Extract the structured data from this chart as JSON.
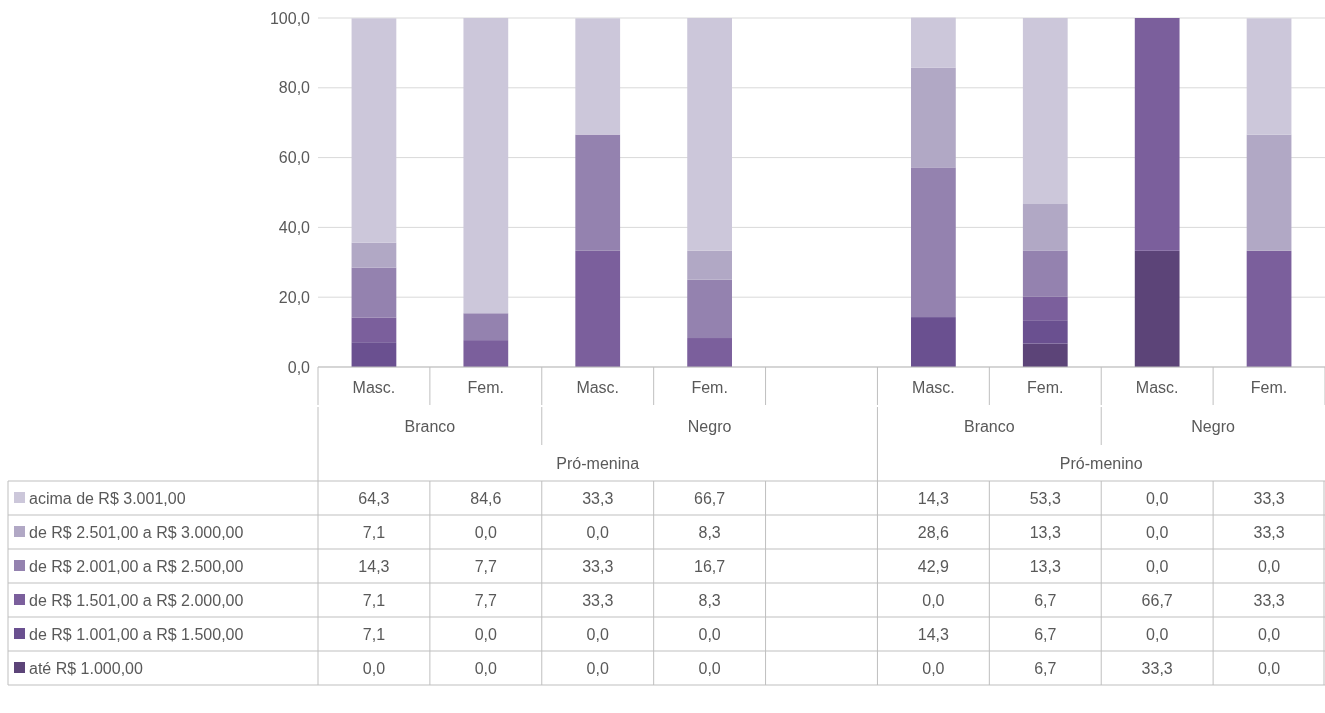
{
  "chart_data": {
    "type": "bar",
    "stacked": true,
    "categories": [
      "Masc.",
      "Fem.",
      "Masc.",
      "Fem.",
      null,
      "Masc.",
      "Fem.",
      "Masc.",
      "Fem."
    ],
    "annotations": [
      "Branco",
      "Negro",
      "Branco",
      "Negro",
      "Pró-menina",
      "Pró-menino"
    ],
    "series": [
      {
        "name": "até R$ 1.000,00",
        "color": "#5c4478",
        "values": [
          0,
          0,
          0,
          0,
          null,
          0,
          6.7,
          33.3,
          0
        ],
        "value_labels": [
          "0,0",
          "0,0",
          "0,0",
          "0,0",
          null,
          "0,0",
          "6,7",
          "33,3",
          "0,0"
        ]
      },
      {
        "name": "de R$ 1.001,00 a R$ 1.500,00",
        "color": "#6a5090",
        "values": [
          7.1,
          0,
          0,
          0,
          null,
          14.3,
          6.7,
          0,
          0
        ],
        "value_labels": [
          "7,1",
          "0,0",
          "0,0",
          "0,0",
          null,
          "14,3",
          "6,7",
          "0,0",
          "0,0"
        ]
      },
      {
        "name": "de R$ 1.501,00 a R$ 2.000,00",
        "color": "#7b5f9c",
        "values": [
          7.1,
          7.7,
          33.3,
          8.3,
          null,
          0,
          6.7,
          66.7,
          33.3
        ],
        "value_labels": [
          "7,1",
          "7,7",
          "33,3",
          "8,3",
          null,
          "0,0",
          "6,7",
          "66,7",
          "33,3"
        ]
      },
      {
        "name": "de R$ 2.001,00 a R$ 2.500,00",
        "color": "#9482af",
        "values": [
          14.3,
          7.7,
          33.3,
          16.7,
          null,
          42.9,
          13.3,
          0,
          0
        ],
        "value_labels": [
          "14,3",
          "7,7",
          "33,3",
          "16,7",
          null,
          "42,9",
          "13,3",
          "0,0",
          "0,0"
        ]
      },
      {
        "name": "de R$ 2.501,00 a R$ 3.000,00",
        "color": "#b1a8c5",
        "values": [
          7.1,
          0,
          0,
          8.3,
          null,
          28.6,
          13.3,
          0,
          33.3
        ],
        "value_labels": [
          "7,1",
          "0,0",
          "0,0",
          "8,3",
          null,
          "28,6",
          "13,3",
          "0,0",
          "33,3"
        ]
      },
      {
        "name": "acima de R$ 3.001,00",
        "color": "#ccc7da",
        "values": [
          64.3,
          84.6,
          33.3,
          66.7,
          null,
          14.3,
          53.3,
          0,
          33.3
        ],
        "value_labels": [
          "64,3",
          "84,6",
          "33,3",
          "66,7",
          null,
          "14,3",
          "53,3",
          "0,0",
          "33,3"
        ]
      }
    ],
    "ylim": [
      0,
      100
    ],
    "yticks": [
      {
        "value": 0,
        "label": "0,0"
      },
      {
        "value": 20,
        "label": "20,0"
      },
      {
        "value": 40,
        "label": "40,0"
      },
      {
        "value": 60,
        "label": "60,0"
      },
      {
        "value": 80,
        "label": "80,0"
      },
      {
        "value": 100,
        "label": "100,0"
      }
    ],
    "grid": "y",
    "legend": "left"
  }
}
